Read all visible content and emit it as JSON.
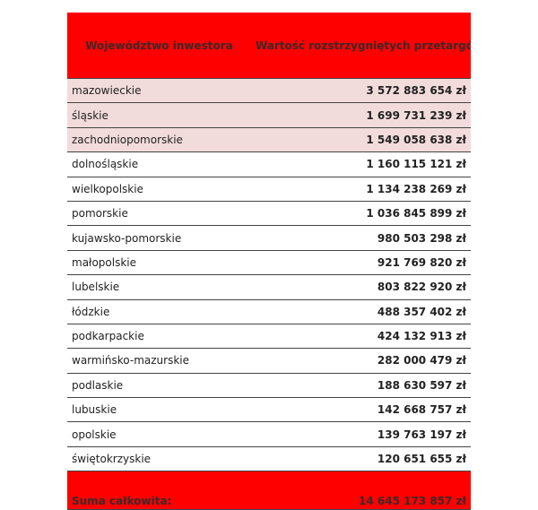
{
  "table": {
    "header": [
      "Województwo inwestora",
      "Wartość rozstrzygniętych przetargów"
    ],
    "rows": [
      [
        "mazowieckie",
        "3 572 883 654 zł"
      ],
      [
        "śląskie",
        "1 699 731 239 zł"
      ],
      [
        "zachodniopomorskie",
        "1 549 058 638 zł"
      ],
      [
        "dolnośląskie",
        "1 160 115 121 zł"
      ],
      [
        "wielkopolskie",
        "1 134 238 269 zł"
      ],
      [
        "pomorskie",
        "1 036 845 899 zł"
      ],
      [
        "kujawsko-pomorskie",
        "980 503 298 zł"
      ],
      [
        "małopolskie",
        "921 769 820 zł"
      ],
      [
        "lubelskie",
        "803 822 920 zł"
      ],
      [
        "łódzkie",
        "488 357 402 zł"
      ],
      [
        "podkarpackie",
        "424 132 913 zł"
      ],
      [
        "warmińsko-mazurskie",
        "282 000 479 zł"
      ],
      [
        "podlaskie",
        "188 630 597 zł"
      ],
      [
        "lubuskie",
        "142 668 757 zł"
      ],
      [
        "opolskie",
        "139 763 197 zł"
      ],
      [
        "świętokrzyskie",
        "120 651 655 zł"
      ]
    ],
    "footer": [
      "Suma całkowita:",
      "14 645 173 857 zł"
    ]
  }
}
